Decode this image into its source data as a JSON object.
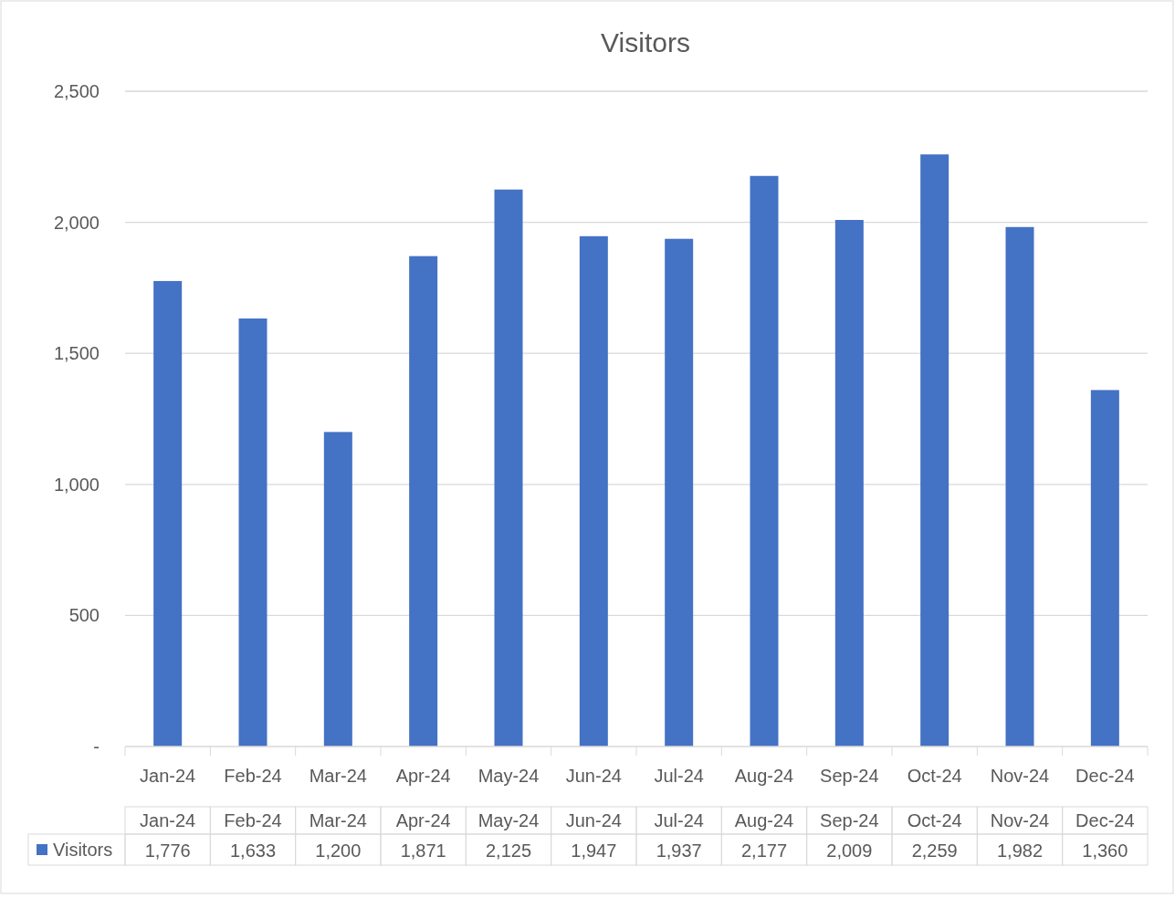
{
  "chart_data": {
    "type": "bar",
    "title": "Visitors",
    "categories": [
      "Jan-24",
      "Feb-24",
      "Mar-24",
      "Apr-24",
      "May-24",
      "Jun-24",
      "Jul-24",
      "Aug-24",
      "Sep-24",
      "Oct-24",
      "Nov-24",
      "Dec-24"
    ],
    "series": [
      {
        "name": "Visitors",
        "color": "#4472c4",
        "values": [
          1776,
          1633,
          1200,
          1871,
          2125,
          1947,
          1937,
          2177,
          2009,
          2259,
          1982,
          1360
        ],
        "value_labels": [
          "1,776",
          "1,633",
          "1,200",
          "1,871",
          "2,125",
          "1,947",
          "1,937",
          "2,177",
          "2,009",
          "2,259",
          "1,982",
          "1,360"
        ]
      }
    ],
    "ylim": [
      0,
      2500
    ],
    "yticks": [
      {
        "value": 0,
        "label": "-"
      },
      {
        "value": 500,
        "label": "500"
      },
      {
        "value": 1000,
        "label": "1,000"
      },
      {
        "value": 1500,
        "label": "1,500"
      },
      {
        "value": 2000,
        "label": "2,000"
      },
      {
        "value": 2500,
        "label": "2,500"
      }
    ],
    "grid": "y"
  }
}
